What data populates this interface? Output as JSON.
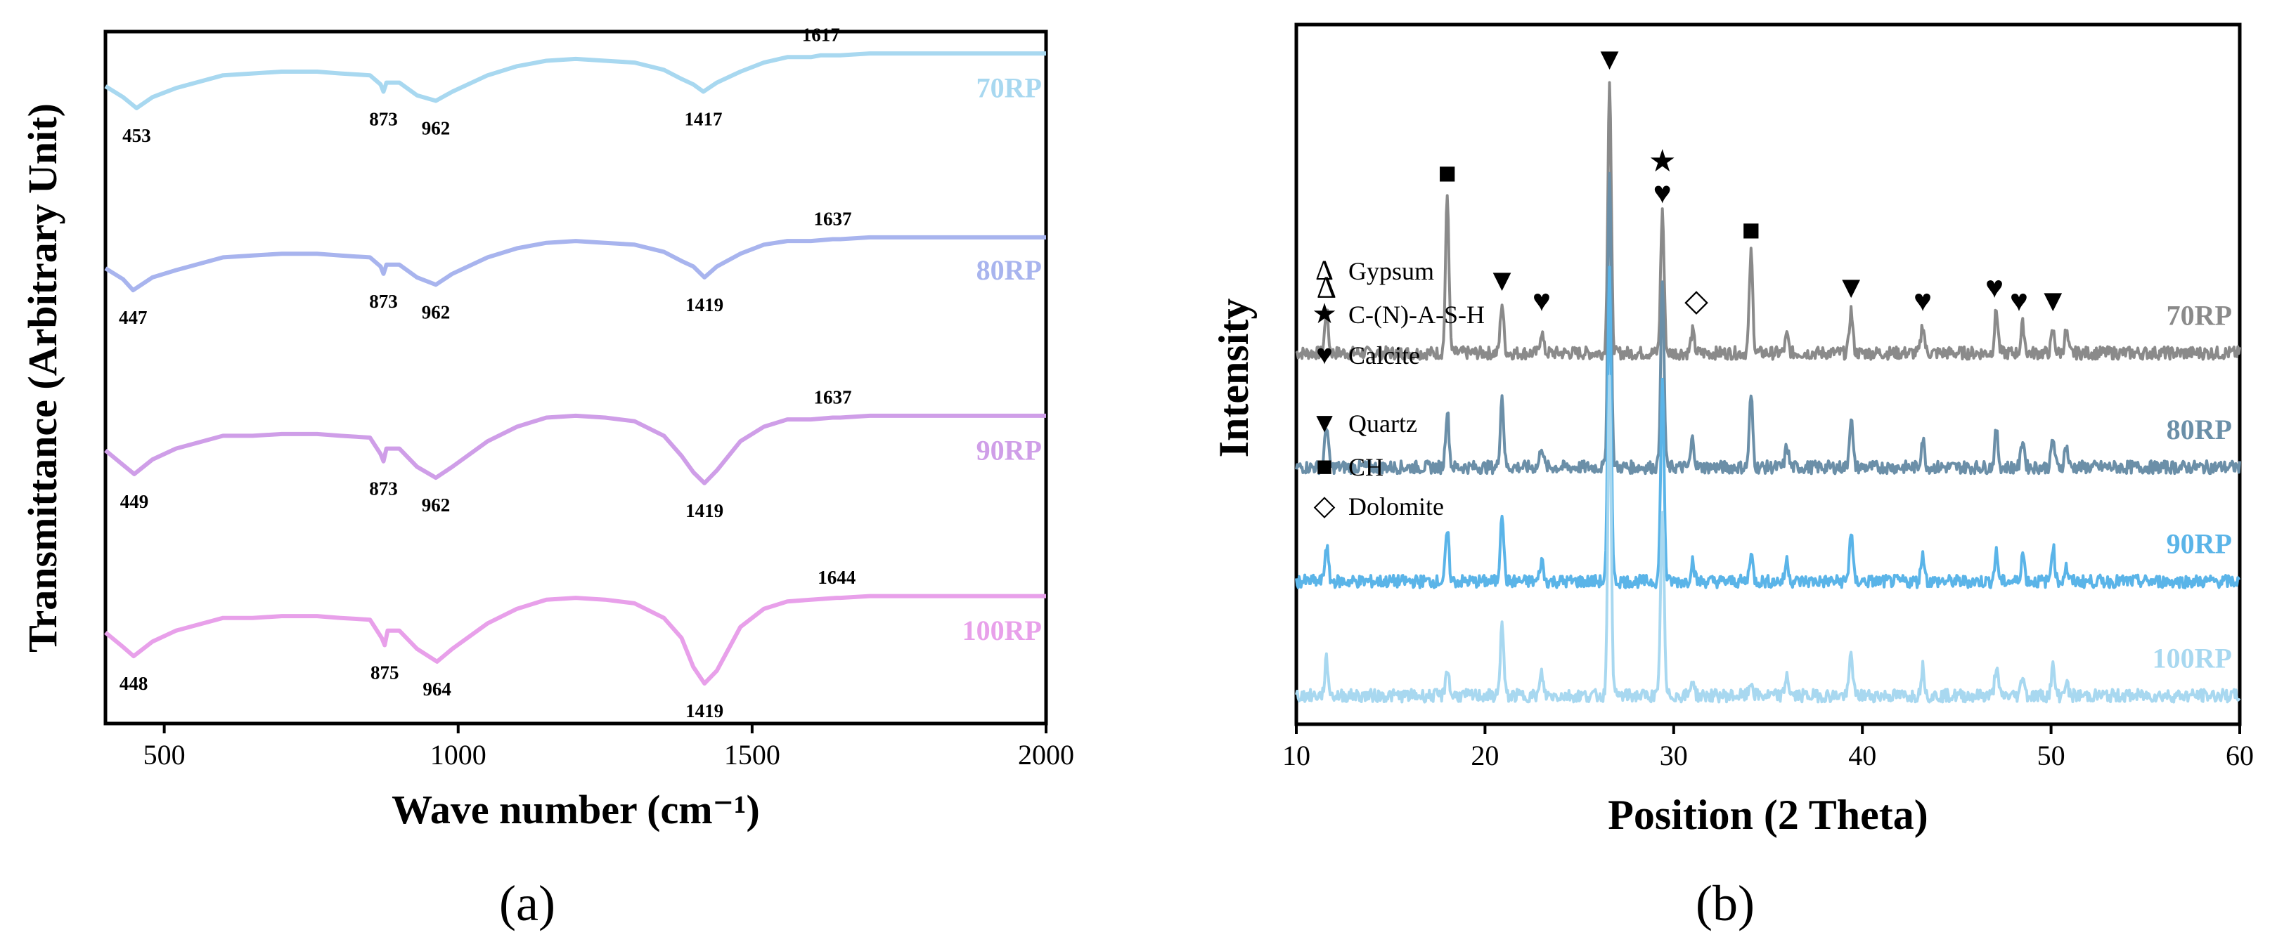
{
  "chart_data": [
    {
      "type": "line",
      "panel_label": "(a)",
      "title": "",
      "xlabel": "Wave number (cm⁻¹)",
      "ylabel": "Transmittance (Arbitrary Unit)",
      "xlim": [
        400,
        2000
      ],
      "xticks": [
        500,
        1000,
        1500,
        2000
      ],
      "yticks": [],
      "grid": false,
      "series": [
        {
          "name": "70RP",
          "color": "#a8d8f0",
          "x": [
            400,
            430,
            453,
            480,
            520,
            600,
            650,
            700,
            760,
            800,
            850,
            868,
            873,
            878,
            900,
            930,
            962,
            990,
            1050,
            1100,
            1150,
            1200,
            1250,
            1300,
            1350,
            1380,
            1400,
            1417,
            1440,
            1480,
            1520,
            1560,
            1600,
            1617,
            1650,
            1700,
            1800,
            1900,
            2000
          ],
          "y": [
            96.5,
            95.9,
            95.3,
            95.9,
            96.4,
            97.1,
            97.2,
            97.3,
            97.3,
            97.2,
            97.1,
            96.6,
            96.2,
            96.7,
            96.7,
            96.0,
            95.7,
            96.2,
            97.1,
            97.6,
            97.9,
            98.0,
            97.9,
            97.8,
            97.4,
            96.9,
            96.6,
            96.2,
            96.7,
            97.3,
            97.8,
            98.1,
            98.1,
            98.2,
            98.2,
            98.3,
            98.3,
            98.3,
            98.3
          ]
        },
        {
          "name": "80RP",
          "color": "#a8b4ee",
          "x": [
            400,
            430,
            447,
            480,
            520,
            600,
            650,
            700,
            760,
            800,
            850,
            868,
            873,
            878,
            900,
            930,
            962,
            990,
            1050,
            1100,
            1150,
            1200,
            1250,
            1300,
            1350,
            1380,
            1400,
            1419,
            1440,
            1480,
            1520,
            1560,
            1600,
            1637,
            1650,
            1700,
            1800,
            1900,
            2000
          ],
          "y": [
            86.5,
            85.9,
            85.3,
            86.0,
            86.4,
            87.1,
            87.2,
            87.3,
            87.3,
            87.2,
            87.1,
            86.6,
            86.2,
            86.7,
            86.7,
            86.0,
            85.6,
            86.2,
            87.1,
            87.6,
            87.9,
            88.0,
            87.9,
            87.8,
            87.4,
            86.9,
            86.6,
            86.0,
            86.6,
            87.3,
            87.8,
            88.0,
            88.0,
            88.1,
            88.1,
            88.2,
            88.2,
            88.2,
            88.2
          ]
        },
        {
          "name": "90RP",
          "color": "#cf9ee8",
          "x": [
            400,
            430,
            449,
            480,
            520,
            600,
            650,
            700,
            760,
            800,
            850,
            868,
            873,
            878,
            900,
            930,
            962,
            990,
            1050,
            1100,
            1150,
            1200,
            1250,
            1300,
            1350,
            1380,
            1400,
            1419,
            1440,
            1480,
            1520,
            1560,
            1600,
            1637,
            1650,
            1700,
            1800,
            1900,
            2000
          ],
          "y": [
            76.5,
            75.7,
            75.2,
            76.0,
            76.6,
            77.3,
            77.3,
            77.4,
            77.4,
            77.3,
            77.2,
            76.3,
            75.9,
            76.6,
            76.6,
            75.6,
            75.0,
            75.6,
            77.0,
            77.8,
            78.3,
            78.4,
            78.3,
            78.1,
            77.3,
            76.2,
            75.3,
            74.7,
            75.4,
            77.0,
            77.8,
            78.2,
            78.2,
            78.3,
            78.3,
            78.4,
            78.4,
            78.4,
            78.4
          ]
        },
        {
          "name": "100RP",
          "color": "#e8a0ea",
          "x": [
            400,
            430,
            448,
            480,
            520,
            600,
            650,
            700,
            760,
            800,
            850,
            870,
            875,
            880,
            900,
            930,
            964,
            990,
            1050,
            1100,
            1150,
            1200,
            1250,
            1300,
            1350,
            1380,
            1400,
            1419,
            1440,
            1480,
            1520,
            1560,
            1600,
            1644,
            1650,
            1700,
            1800,
            1900,
            2000
          ],
          "y": [
            66.5,
            65.7,
            65.2,
            66.0,
            66.6,
            67.3,
            67.3,
            67.4,
            67.4,
            67.3,
            67.2,
            66.2,
            65.8,
            66.6,
            66.6,
            65.6,
            64.9,
            65.6,
            67.0,
            67.8,
            68.3,
            68.4,
            68.3,
            68.1,
            67.3,
            66.2,
            64.6,
            63.7,
            64.4,
            66.8,
            67.8,
            68.2,
            68.3,
            68.4,
            68.4,
            68.5,
            68.5,
            68.5,
            68.5
          ]
        }
      ],
      "annotations": [
        {
          "series": "70RP",
          "text": "453",
          "x": 453
        },
        {
          "series": "70RP",
          "text": "873",
          "x": 873
        },
        {
          "series": "70RP",
          "text": "962",
          "x": 962
        },
        {
          "series": "70RP",
          "text": "1417",
          "x": 1417
        },
        {
          "series": "70RP",
          "text": "1617",
          "x": 1617
        },
        {
          "series": "80RP",
          "text": "447",
          "x": 447
        },
        {
          "series": "80RP",
          "text": "873",
          "x": 873
        },
        {
          "series": "80RP",
          "text": "962",
          "x": 962
        },
        {
          "series": "80RP",
          "text": "1419",
          "x": 1419
        },
        {
          "series": "80RP",
          "text": "1637",
          "x": 1637
        },
        {
          "series": "90RP",
          "text": "449",
          "x": 449
        },
        {
          "series": "90RP",
          "text": "873",
          "x": 873
        },
        {
          "series": "90RP",
          "text": "962",
          "x": 962
        },
        {
          "series": "90RP",
          "text": "1419",
          "x": 1419
        },
        {
          "series": "90RP",
          "text": "1637",
          "x": 1637
        },
        {
          "series": "100RP",
          "text": "448",
          "x": 448
        },
        {
          "series": "100RP",
          "text": "875",
          "x": 875
        },
        {
          "series": "100RP",
          "text": "964",
          "x": 964
        },
        {
          "series": "100RP",
          "text": "1419",
          "x": 1419
        },
        {
          "series": "100RP",
          "text": "1644",
          "x": 1644
        }
      ]
    },
    {
      "type": "line",
      "panel_label": "(b)",
      "title": "",
      "xlabel": "Position (2 Theta)",
      "ylabel": "Intensity",
      "xlim": [
        10,
        60
      ],
      "xticks": [
        10,
        20,
        30,
        40,
        50,
        60
      ],
      "yticks": [],
      "grid": false,
      "baseline_noise": 1.5,
      "series": [
        {
          "name": "70RP",
          "color": "#8a8a8a",
          "baseline": 34
        },
        {
          "name": "80RP",
          "color": "#6b8fa8",
          "baseline": 26
        },
        {
          "name": "90RP",
          "color": "#5ab4e8",
          "baseline": 18
        },
        {
          "name": "100RP",
          "color": "#a8d8f0",
          "baseline": 10
        }
      ],
      "peaks": [
        {
          "x": 11.6,
          "h": [
            3,
            3,
            2.5,
            2.5
          ]
        },
        {
          "x": 18.0,
          "h": [
            11,
            4,
            3.5,
            2
          ]
        },
        {
          "x": 20.9,
          "h": [
            3.5,
            5,
            5,
            5
          ]
        },
        {
          "x": 23.0,
          "h": [
            1.5,
            1.5,
            1.5,
            1.5
          ]
        },
        {
          "x": 26.6,
          "h": [
            19,
            21,
            22,
            22
          ]
        },
        {
          "x": 29.4,
          "h": [
            10,
            13,
            14,
            13
          ]
        },
        {
          "x": 31.0,
          "h": [
            1.5,
            2,
            1.5,
            1.2
          ]
        },
        {
          "x": 34.1,
          "h": [
            7,
            5,
            2,
            1
          ]
        },
        {
          "x": 36.0,
          "h": [
            1.2,
            1.5,
            1.5,
            1.5
          ]
        },
        {
          "x": 39.4,
          "h": [
            3,
            3.5,
            3.5,
            3
          ]
        },
        {
          "x": 43.2,
          "h": [
            2,
            2,
            2,
            2
          ]
        },
        {
          "x": 47.1,
          "h": [
            3,
            2.5,
            2,
            2
          ]
        },
        {
          "x": 48.5,
          "h": [
            2,
            2,
            2,
            1.5
          ]
        },
        {
          "x": 50.1,
          "h": [
            1.5,
            2,
            2.5,
            2
          ]
        },
        {
          "x": 50.8,
          "h": [
            1.5,
            1.5,
            1,
            1
          ]
        }
      ],
      "phase_markers": [
        {
          "symbol": "Δ",
          "phase": "Gypsum",
          "x": 11.6
        },
        {
          "symbol": "■",
          "phase": "CH",
          "x": 18.0
        },
        {
          "symbol": "▼",
          "phase": "Quartz",
          "x": 20.9
        },
        {
          "symbol": "♥",
          "phase": "Calcite",
          "x": 23.0
        },
        {
          "symbol": "▼",
          "phase": "Quartz",
          "x": 26.6
        },
        {
          "symbol": "★",
          "phase": "C-(N)-A-S-H",
          "x": 29.4
        },
        {
          "symbol": "♥",
          "phase": "Calcite",
          "x": 29.4
        },
        {
          "symbol": "◇",
          "phase": "Dolomite",
          "x": 31.2
        },
        {
          "symbol": "■",
          "phase": "CH",
          "x": 34.1
        },
        {
          "symbol": "▼",
          "phase": "Quartz",
          "x": 39.4
        },
        {
          "symbol": "♥",
          "phase": "Calcite",
          "x": 43.2
        },
        {
          "symbol": "♥",
          "phase": "Calcite",
          "x": 47.0
        },
        {
          "symbol": "♥",
          "phase": "Calcite",
          "x": 48.3
        },
        {
          "symbol": "▼",
          "phase": "Quartz",
          "x": 50.1
        }
      ],
      "legend": [
        {
          "symbol": "Δ",
          "label": "Gypsum"
        },
        {
          "symbol": "★",
          "label": "C-(N)-A-S-H"
        },
        {
          "symbol": "♥",
          "label": "Calcite"
        },
        {
          "symbol": "▼",
          "label": "Quartz"
        },
        {
          "symbol": "■",
          "label": "CH"
        },
        {
          "symbol": "◇",
          "label": "Dolomite"
        }
      ]
    }
  ]
}
